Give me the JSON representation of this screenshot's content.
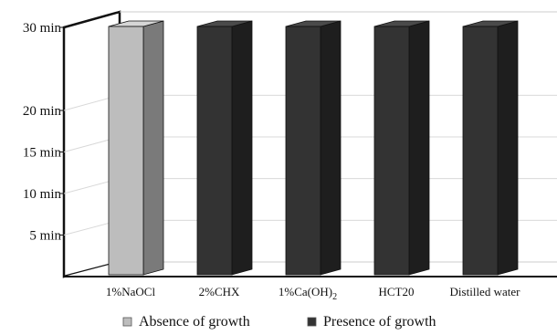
{
  "chart_data": {
    "type": "bar",
    "title": "",
    "xlabel": "",
    "ylabel": "",
    "categories": [
      "1%NaOCl",
      "2%CHX",
      "1%Ca(OH)2",
      "HCT20",
      "Distilled water"
    ],
    "category_labels": [
      {
        "main": "1%NaOCl",
        "sub": "",
        "tail": ""
      },
      {
        "main": "2%CHX",
        "sub": "",
        "tail": ""
      },
      {
        "main": "1%Ca(OH)",
        "sub": "2",
        "tail": ""
      },
      {
        "main": "HCT20",
        "sub": "",
        "tail": ""
      },
      {
        "main": "Distilled water",
        "sub": "",
        "tail": ""
      }
    ],
    "values": [
      30,
      30,
      30,
      30,
      30
    ],
    "bar_status": [
      "absence",
      "presence",
      "presence",
      "presence",
      "presence"
    ],
    "y_ticks": [
      {
        "value": 5,
        "label": "5 min"
      },
      {
        "value": 10,
        "label": "10 min"
      },
      {
        "value": 15,
        "label": "15 min"
      },
      {
        "value": 20,
        "label": "20 min"
      },
      {
        "value": 30,
        "label": "30 min"
      }
    ],
    "legend": [
      {
        "key": "absence",
        "label": "Absence of growth",
        "color": "#bdbdbd"
      },
      {
        "key": "presence",
        "label": "Presence of growth",
        "color": "#333333"
      }
    ],
    "legend_position": "bottom",
    "grid": true
  }
}
